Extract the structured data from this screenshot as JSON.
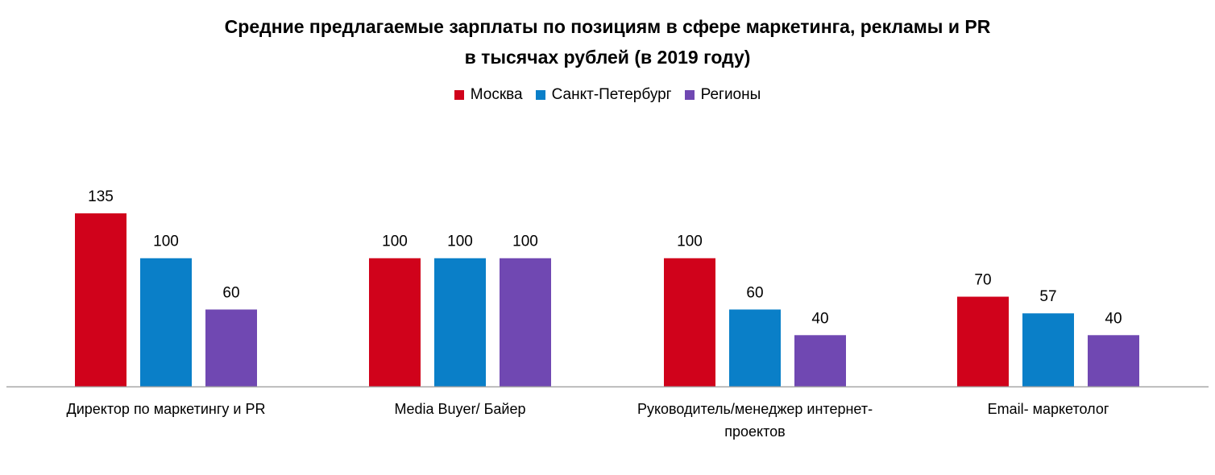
{
  "chart_data": {
    "type": "bar",
    "title": "Средние предлагаемые зарплаты по позициям  в сфере маркетинга, рекламы и PR",
    "subtitle": "в тысячах рублей (в 2019 году)",
    "legend_position": "top",
    "grid": false,
    "categories": [
      [
        "Директор по маркетингу и PR"
      ],
      [
        "Media Buyer/ Байер"
      ],
      [
        "Руководитель/менеджер интернет-",
        "проектов"
      ],
      [
        "Email- маркетолог"
      ]
    ],
    "ylim": [
      0,
      135
    ],
    "series": [
      {
        "name": "Москва",
        "color": "#d0021b",
        "values": [
          135,
          100,
          100,
          70
        ]
      },
      {
        "name": "Санкт-Петербург",
        "color": "#0a7fc8",
        "values": [
          100,
          100,
          60,
          57
        ]
      },
      {
        "name": "Регионы",
        "color": "#7048b2",
        "values": [
          60,
          100,
          40,
          40
        ]
      }
    ]
  }
}
